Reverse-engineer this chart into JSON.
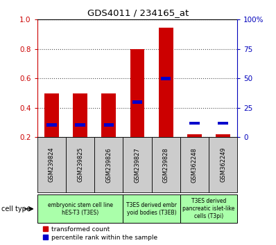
{
  "title": "GDS4011 / 234165_at",
  "samples": [
    "GSM239824",
    "GSM239825",
    "GSM239826",
    "GSM239827",
    "GSM239828",
    "GSM362248",
    "GSM362249"
  ],
  "red_values": [
    0.5,
    0.5,
    0.5,
    0.8,
    0.945,
    0.22,
    0.22
  ],
  "blue_values": [
    0.285,
    0.285,
    0.285,
    0.44,
    0.6,
    0.295,
    0.295
  ],
  "ylim_left": [
    0.2,
    1.0
  ],
  "ylim_right": [
    0,
    100
  ],
  "yticks_left": [
    0.2,
    0.4,
    0.6,
    0.8,
    1.0
  ],
  "yticks_right": [
    0,
    25,
    50,
    75,
    100
  ],
  "right_tick_labels": [
    "0",
    "25",
    "50",
    "75",
    "100%"
  ],
  "cell_types": [
    {
      "label": "embryonic stem cell line\nhES-T3 (T3ES)",
      "span": [
        0,
        3
      ],
      "color": "#aaffaa"
    },
    {
      "label": "T3ES derived embr\nyoid bodies (T3EB)",
      "span": [
        3,
        5
      ],
      "color": "#aaffaa"
    },
    {
      "label": "T3ES derived\npancreatic islet-like\ncells (T3pi)",
      "span": [
        5,
        7
      ],
      "color": "#aaffaa"
    }
  ],
  "legend_items": [
    {
      "label": "transformed count",
      "color": "#cc0000"
    },
    {
      "label": "percentile rank within the sample",
      "color": "#0000cc"
    }
  ],
  "bar_color_red": "#cc0000",
  "bar_color_blue": "#0000cc",
  "tick_color_left": "#cc0000",
  "tick_color_right": "#0000bb",
  "cell_type_label": "cell type",
  "background_color": "#ffffff",
  "tick_bg_color": "#cccccc",
  "bar_width": 0.5,
  "blue_bar_width": 0.35,
  "blue_bar_height": 0.022
}
